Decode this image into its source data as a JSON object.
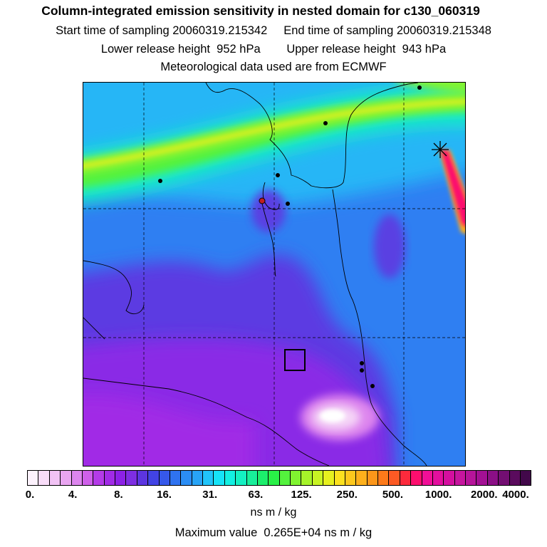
{
  "header": {
    "title": "Column-integrated emission sensitivity in nested domain for c130_060319",
    "line1": "Start time of sampling 20060319.215342     End time of sampling 20060319.215348",
    "line2": "Lower release height  952 hPa        Upper release height  943 hPa",
    "line3": "Meteorological data used are from ECMWF"
  },
  "colorbar": {
    "tick_labels": [
      "0.",
      "4.",
      "8.",
      "16.",
      "31.",
      "63.",
      "125.",
      "250.",
      "500.",
      "1000.",
      "2000.",
      "4000."
    ],
    "colors": [
      "#fdf2fd",
      "#f9ddf9",
      "#f2c3f5",
      "#e9a5f1",
      "#dd85ee",
      "#cf60ea",
      "#b43be8",
      "#a12be6",
      "#8c21e6",
      "#7e2ee2",
      "#5c35e0",
      "#4243e4",
      "#3658ea",
      "#2f73f0",
      "#2b8df4",
      "#28a4f6",
      "#21c4f9",
      "#16e3f7",
      "#13f0e2",
      "#14f0c2",
      "#18ee9a",
      "#1cee6c",
      "#29f047",
      "#54f23d",
      "#80f430",
      "#a6f42a",
      "#c8f424",
      "#e6f01f",
      "#fce11f",
      "#fdc81d",
      "#fdb01c",
      "#fc961a",
      "#fc7a1a",
      "#fc5a24",
      "#fc2a3c",
      "#fc0e6e",
      "#f10f97",
      "#e30f9e",
      "#d40f9f",
      "#c6159e",
      "#b6149a",
      "#a31094",
      "#8b0f86",
      "#730e72",
      "#5a0b5d",
      "#42084a"
    ]
  },
  "unit_label": "ns m / kg",
  "max_label": "Maximum value  0.265E+04 ns m / kg"
}
